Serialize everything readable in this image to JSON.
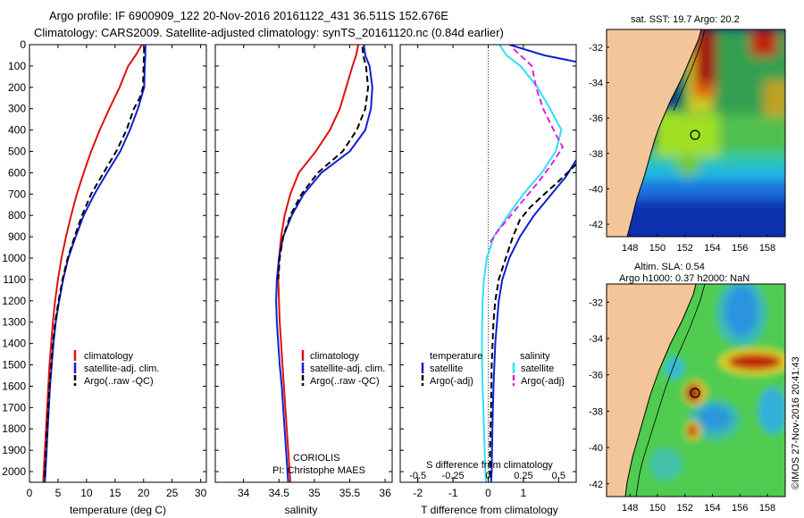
{
  "header": {
    "line1": "Argo profile: IF 6900909_122 20-Nov-2016 20161122_431 36.511S 152.676E",
    "line2": "Climatology: CARS2009. Satellite-adjusted climatology: synTS_20161120.nc (0.84d earlier)"
  },
  "legend_ts": {
    "items": [
      {
        "label": "climatology",
        "color": "#e01010"
      },
      {
        "label": "satellite-adj. clim.",
        "color": "#1020d0"
      },
      {
        "label": "Argo(..raw -QC)",
        "color": "#000000"
      }
    ]
  },
  "legend_diff": {
    "temperature_title": "temperature",
    "salinity_title": "salinity",
    "items": [
      {
        "label": "satellite",
        "color": "#1020d0"
      },
      {
        "label": "Argo(-adj)",
        "color": "#000000"
      },
      {
        "label": "satellite",
        "color": "#30e0f0"
      },
      {
        "label": "Argo(-adj)",
        "color": "#e020e0"
      }
    ]
  },
  "credit": {
    "line1": "CORIOLIS",
    "line2": "PI: Christophe MAES"
  },
  "maps": {
    "sst_title": "sat. SST: 19.7 Argo: 20.2",
    "sla_title1": "Altim. SLA: 0.54",
    "sla_title2": "Argo h1000: 0.37 h2000: NaN",
    "lat_ticks": [
      "-32",
      "-34",
      "-36",
      "-38",
      "-40",
      "-42"
    ],
    "lon_ticks": [
      "148",
      "150",
      "152",
      "154",
      "156",
      "158"
    ],
    "argo_lat": -36.511,
    "argo_lon": 152.676
  },
  "imos_stamp": "©IMOS 27-Nov-2016 20:41:43",
  "chart_data": [
    {
      "type": "line",
      "name": "temperature",
      "xlabel": "temperature (deg C)",
      "ylabel": "",
      "xlim": [
        0,
        31
      ],
      "ylim": [
        2050,
        0
      ],
      "xticks": [
        0,
        5,
        10,
        15,
        20,
        25,
        30
      ],
      "yticks": [
        0,
        100,
        200,
        300,
        400,
        500,
        600,
        700,
        800,
        900,
        1000,
        1100,
        1200,
        1300,
        1400,
        1500,
        1600,
        1700,
        1800,
        1900,
        2000
      ],
      "series": [
        {
          "name": "climatology",
          "color": "#e01010",
          "dash": "",
          "points": [
            [
              19.7,
              0
            ],
            [
              18.6,
              50
            ],
            [
              17.3,
              100
            ],
            [
              15.8,
              200
            ],
            [
              14.0,
              300
            ],
            [
              12.3,
              400
            ],
            [
              10.8,
              500
            ],
            [
              9.5,
              600
            ],
            [
              8.3,
              700
            ],
            [
              7.3,
              800
            ],
            [
              6.4,
              900
            ],
            [
              5.6,
              1000
            ],
            [
              5.0,
              1100
            ],
            [
              4.5,
              1200
            ],
            [
              4.1,
              1300
            ],
            [
              3.8,
              1400
            ],
            [
              3.5,
              1500
            ],
            [
              3.3,
              1600
            ],
            [
              3.1,
              1700
            ],
            [
              2.9,
              1800
            ],
            [
              2.7,
              1900
            ],
            [
              2.5,
              2000
            ],
            [
              2.4,
              2050
            ]
          ]
        },
        {
          "name": "satellite-adj. clim.",
          "color": "#1020d0",
          "dash": "",
          "points": [
            [
              20.3,
              0
            ],
            [
              20.3,
              50
            ],
            [
              20.2,
              100
            ],
            [
              20.1,
              200
            ],
            [
              19.0,
              300
            ],
            [
              17.6,
              400
            ],
            [
              15.9,
              500
            ],
            [
              13.6,
              600
            ],
            [
              11.4,
              700
            ],
            [
              9.5,
              800
            ],
            [
              8.1,
              900
            ],
            [
              6.8,
              1000
            ],
            [
              5.9,
              1100
            ],
            [
              5.2,
              1200
            ],
            [
              4.6,
              1300
            ],
            [
              4.2,
              1400
            ],
            [
              3.9,
              1500
            ],
            [
              3.6,
              1600
            ],
            [
              3.4,
              1700
            ],
            [
              3.2,
              1800
            ],
            [
              3.0,
              1900
            ],
            [
              2.8,
              2000
            ],
            [
              2.7,
              2050
            ]
          ]
        },
        {
          "name": "Argo(..raw -QC)",
          "color": "#000000",
          "dash": "7,4",
          "points": [
            [
              20.1,
              10
            ],
            [
              20.0,
              100
            ],
            [
              19.9,
              200
            ],
            [
              19.3,
              250
            ],
            [
              18.3,
              300
            ],
            [
              17.0,
              400
            ],
            [
              15.2,
              500
            ],
            [
              13.0,
              600
            ],
            [
              10.8,
              700
            ],
            [
              9.2,
              800
            ],
            [
              7.9,
              900
            ],
            [
              6.7,
              1000
            ],
            [
              5.8,
              1100
            ],
            [
              5.1,
              1200
            ],
            [
              4.5,
              1300
            ],
            [
              4.1,
              1400
            ],
            [
              3.8,
              1500
            ],
            [
              3.5,
              1600
            ],
            [
              3.3,
              1700
            ],
            [
              3.1,
              1800
            ],
            [
              2.9,
              1900
            ],
            [
              2.7,
              2000
            ],
            [
              2.7,
              2040
            ]
          ]
        }
      ]
    },
    {
      "type": "line",
      "name": "salinity",
      "xlabel": "salinity",
      "ylabel": "",
      "xlim": [
        33.6,
        36.1
      ],
      "ylim": [
        2050,
        0
      ],
      "xticks": [
        34,
        34.5,
        35,
        35.5,
        36
      ],
      "series": [
        {
          "name": "climatology",
          "color": "#e01010",
          "dash": "",
          "points": [
            [
              35.62,
              0
            ],
            [
              35.59,
              50
            ],
            [
              35.54,
              100
            ],
            [
              35.45,
              200
            ],
            [
              35.36,
              300
            ],
            [
              35.22,
              400
            ],
            [
              35.02,
              500
            ],
            [
              34.78,
              600
            ],
            [
              34.66,
              700
            ],
            [
              34.58,
              800
            ],
            [
              34.53,
              900
            ],
            [
              34.5,
              1000
            ],
            [
              34.49,
              1100
            ],
            [
              34.5,
              1200
            ],
            [
              34.51,
              1300
            ],
            [
              34.53,
              1400
            ],
            [
              34.55,
              1500
            ],
            [
              34.57,
              1600
            ],
            [
              34.59,
              1700
            ],
            [
              34.61,
              1800
            ],
            [
              34.63,
              1900
            ],
            [
              34.65,
              2000
            ],
            [
              34.66,
              2050
            ]
          ]
        },
        {
          "name": "satellite-adj. clim.",
          "color": "#1020d0",
          "dash": "",
          "points": [
            [
              35.7,
              0
            ],
            [
              35.72,
              50
            ],
            [
              35.78,
              100
            ],
            [
              35.82,
              200
            ],
            [
              35.8,
              300
            ],
            [
              35.72,
              400
            ],
            [
              35.5,
              500
            ],
            [
              35.1,
              600
            ],
            [
              34.85,
              700
            ],
            [
              34.68,
              800
            ],
            [
              34.56,
              900
            ],
            [
              34.5,
              1000
            ],
            [
              34.47,
              1100
            ],
            [
              34.46,
              1200
            ],
            [
              34.47,
              1300
            ],
            [
              34.49,
              1400
            ],
            [
              34.51,
              1500
            ],
            [
              34.54,
              1600
            ],
            [
              34.56,
              1700
            ],
            [
              34.58,
              1800
            ],
            [
              34.6,
              1900
            ],
            [
              34.62,
              2000
            ],
            [
              34.63,
              2050
            ]
          ]
        },
        {
          "name": "Argo(..raw -QC)",
          "color": "#000000",
          "dash": "7,4",
          "points": [
            [
              35.68,
              10
            ],
            [
              35.69,
              50
            ],
            [
              35.73,
              100
            ],
            [
              35.76,
              200
            ],
            [
              35.72,
              300
            ],
            [
              35.6,
              400
            ],
            [
              35.4,
              500
            ],
            [
              35.05,
              600
            ],
            [
              34.82,
              700
            ],
            [
              34.66,
              800
            ],
            [
              34.56,
              900
            ],
            [
              34.51,
              1000
            ],
            [
              34.49,
              1100
            ]
          ]
        }
      ]
    },
    {
      "type": "line",
      "name": "difference",
      "xlabel": "T difference from climatology",
      "x2label": "S difference from climatology",
      "ylabel": "",
      "xlim": [
        -2.5,
        2.5
      ],
      "ylim": [
        2050,
        0
      ],
      "xticks": [
        -2,
        -1,
        0,
        1
      ],
      "x2ticks": [
        "-0.5",
        "-0.25",
        "0",
        "0.25",
        "0.5"
      ],
      "x2tick_values": [
        -0.5,
        -0.25,
        0,
        0.25,
        0.5
      ],
      "s_scale": 4,
      "zero_line": true,
      "series": [
        {
          "name": "T satellite",
          "color": "#1020d0",
          "dash": "",
          "points": [
            [
              0.6,
              0
            ],
            [
              1.6,
              50
            ],
            [
              2.5,
              80
            ]
          ]
        },
        {
          "name": "T satellite (deep)",
          "color": "#1020d0",
          "dash": "",
          "points": [
            [
              2.5,
              540
            ],
            [
              2.2,
              620
            ],
            [
              1.8,
              700
            ],
            [
              1.3,
              800
            ],
            [
              0.9,
              900
            ],
            [
              0.6,
              1000
            ],
            [
              0.4,
              1100
            ],
            [
              0.3,
              1200
            ],
            [
              0.2,
              1400
            ],
            [
              0.15,
              1600
            ],
            [
              0.12,
              1800
            ],
            [
              0.1,
              2000
            ],
            [
              0.08,
              2050
            ]
          ]
        },
        {
          "name": "T Argo(-adj)",
          "color": "#000000",
          "dash": "7,4",
          "points": [
            [
              2.5,
              560
            ],
            [
              2.0,
              640
            ],
            [
              1.6,
              700
            ],
            [
              1.2,
              760
            ],
            [
              0.9,
              820
            ],
            [
              0.7,
              900
            ],
            [
              0.5,
              1000
            ],
            [
              0.3,
              1100
            ],
            [
              0.2,
              1200
            ],
            [
              0.15,
              1300
            ],
            [
              0.1,
              1500
            ],
            [
              0.08,
              1700
            ],
            [
              0.05,
              1900
            ],
            [
              0.05,
              2040
            ]
          ]
        },
        {
          "name": "S satellite",
          "color": "#30e0f0",
          "dash": "",
          "points": [
            [
              0.32,
              0
            ],
            [
              0.52,
              50
            ],
            [
              0.92,
              100
            ],
            [
              1.4,
              200
            ],
            [
              1.76,
              300
            ],
            [
              2.08,
              400
            ],
            [
              1.92,
              500
            ],
            [
              1.52,
              600
            ],
            [
              1.0,
              700
            ],
            [
              0.56,
              800
            ],
            [
              0.16,
              900
            ],
            [
              -0.04,
              1000
            ],
            [
              -0.12,
              1100
            ],
            [
              -0.16,
              1200
            ],
            [
              -0.18,
              1400
            ],
            [
              -0.16,
              1600
            ],
            [
              -0.12,
              1800
            ],
            [
              -0.08,
              2000
            ],
            [
              -0.06,
              2050
            ]
          ]
        },
        {
          "name": "S Argo(-adj)",
          "color": "#e020e0",
          "dash": "7,4",
          "points": [
            [
              0.72,
              20
            ],
            [
              0.92,
              50
            ],
            [
              1.24,
              100
            ],
            [
              1.36,
              200
            ],
            [
              1.56,
              300
            ],
            [
              1.92,
              420
            ],
            [
              2.12,
              480
            ],
            [
              1.8,
              560
            ],
            [
              1.44,
              640
            ],
            [
              1.04,
              720
            ],
            [
              0.64,
              800
            ],
            [
              0.24,
              880
            ],
            [
              0.04,
              930
            ]
          ]
        }
      ]
    }
  ]
}
